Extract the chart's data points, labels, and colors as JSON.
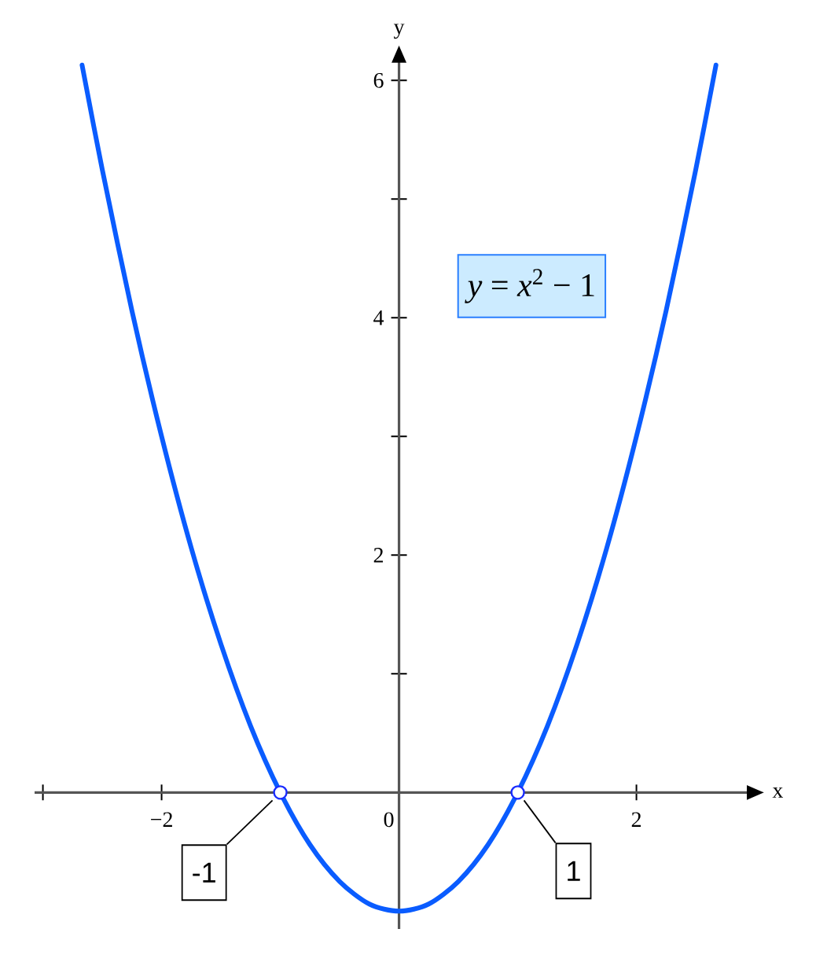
{
  "chart_data": {
    "type": "line",
    "xlabel": "x",
    "ylabel": "y",
    "x": [
      -2.67,
      -2.5,
      -2.25,
      -2,
      -1.75,
      -1.5,
      -1.25,
      -1,
      -0.75,
      -0.5,
      -0.25,
      0,
      0.25,
      0.5,
      0.75,
      1,
      1.25,
      1.5,
      1.75,
      2,
      2.25,
      2.5,
      2.67
    ],
    "series": [
      {
        "color": "#0a5cff",
        "values": [
          6.13,
          5.25,
          4.06,
          3,
          2.06,
          1.25,
          0.56,
          0,
          -0.44,
          -0.75,
          -0.94,
          -1,
          -0.94,
          -0.75,
          -0.44,
          0,
          0.56,
          1.25,
          2.06,
          3,
          4.06,
          5.25,
          6.13
        ]
      },
      {
        "type": "scatter",
        "marker": "circle",
        "color": "#1a2cff",
        "x": [
          -1,
          1
        ],
        "values": [
          0,
          0
        ]
      }
    ],
    "xlim": [
      -3.07,
      2.93
    ],
    "ylim": [
      -1.15,
      6.15
    ],
    "xticks": [
      {
        "value": -3,
        "label": null
      },
      {
        "value": -2,
        "label": "−2"
      },
      0,
      2
    ],
    "yticks": [
      {
        "value": 1,
        "label": null
      },
      2,
      {
        "value": 3,
        "label": null
      },
      4,
      {
        "value": 5,
        "label": null
      },
      6
    ],
    "annotations": [
      "*y* = *x*$^{2}$ − 1",
      {
        "text": "-1",
        "x": -1,
        "y": 0
      },
      {
        "text": "1",
        "x": 1,
        "y": 0
      }
    ]
  }
}
